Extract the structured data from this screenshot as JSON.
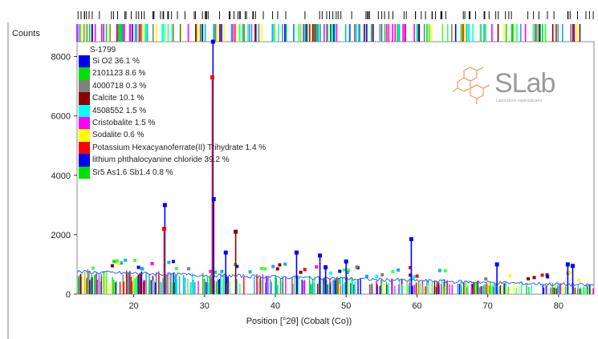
{
  "chart_data": {
    "type": "line",
    "title": "",
    "ylabel": "Counts",
    "xlabel": "Position [°2θ] (Cobalt (Co))",
    "xlim": [
      12,
      85
    ],
    "ylim": [
      0,
      8500
    ],
    "x_ticks": [
      "20",
      "30",
      "40",
      "50",
      "60",
      "70",
      "80"
    ],
    "y_ticks": [
      "0",
      "2000",
      "4000",
      "6000",
      "8000"
    ],
    "legend_title": "S-1799",
    "legend_placement": "top-left",
    "grid": false,
    "series": [
      {
        "name": "Si O2 36.1 %",
        "color": "#0000ff"
      },
      {
        "name": "2101123 8.6 %",
        "color": "#00e000"
      },
      {
        "name": "4000718 0.3 %",
        "color": "#808080"
      },
      {
        "name": "Calcite 10.1 %",
        "color": "#8b0000"
      },
      {
        "name": "4508552 1.5 %",
        "color": "#00ffff"
      },
      {
        "name": "Cristobalite 1.5 %",
        "color": "#ff00ff"
      },
      {
        "name": "Sodalite 0.6 %",
        "color": "#ffff00"
      },
      {
        "name": "Potassium Hexacyanoferrate(II) Trihydrate 1.4 %",
        "color": "#ff0000"
      },
      {
        "name": "lithium phthalocyanine chloride 39.2 %",
        "color": "#0000ff"
      },
      {
        "name": "Sr5 As1.6 Sb1.4 0.8 %",
        "color": "#00e000"
      }
    ],
    "peaks": [
      {
        "x": 24.4,
        "y": 3000,
        "color": "#0000ff"
      },
      {
        "x": 24.3,
        "y": 2200,
        "color": "#ff0000"
      },
      {
        "x": 31.2,
        "y": 8500,
        "color": "#0000ff"
      },
      {
        "x": 31.1,
        "y": 7300,
        "color": "#ff0000"
      },
      {
        "x": 31.3,
        "y": 3200,
        "color": "#0000ff"
      },
      {
        "x": 33.0,
        "y": 1400,
        "color": "#0000ff"
      },
      {
        "x": 34.4,
        "y": 2100,
        "color": "#8b0000"
      },
      {
        "x": 43.0,
        "y": 1400,
        "color": "#0000ff"
      },
      {
        "x": 46.3,
        "y": 1300,
        "color": "#0000ff"
      },
      {
        "x": 47.1,
        "y": 900,
        "color": "#0000ff"
      },
      {
        "x": 50.0,
        "y": 1100,
        "color": "#0000ff"
      },
      {
        "x": 59.2,
        "y": 1850,
        "color": "#0000ff"
      },
      {
        "x": 71.3,
        "y": 1000,
        "color": "#0000ff"
      },
      {
        "x": 81.3,
        "y": 1000,
        "color": "#0000ff"
      },
      {
        "x": 82.0,
        "y": 950,
        "color": "#0000ff"
      }
    ],
    "baseline": {
      "start": 750,
      "end": 300
    }
  },
  "logo": {
    "text": "SLab",
    "subtext": "Laboratorio especializado"
  }
}
